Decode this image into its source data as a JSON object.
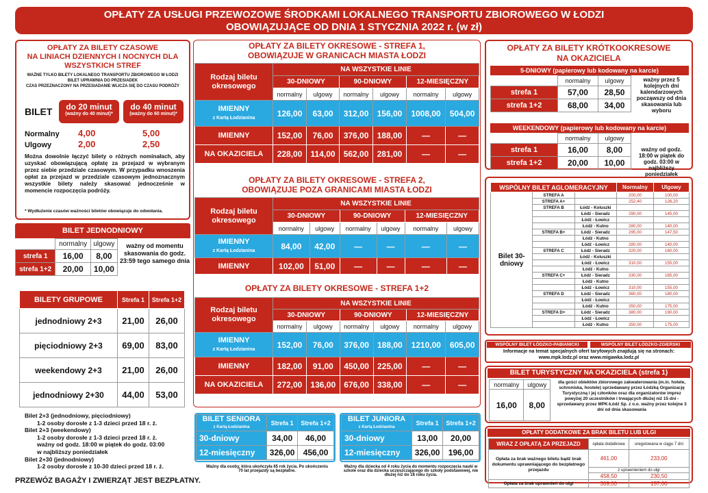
{
  "banner": {
    "line1": "OPŁATY ZA USŁUGI PRZEWOZOWE ŚRODKAMI LOKALNEGO TRANSPORTU ZBIOROWEGO W ŁODZI",
    "line2": "OBOWIĄZUJĄCE OD DNIA 1 STYCZNIA 2022 r. (w zł)"
  },
  "czasowe": {
    "title1": "OPŁATY ZA BILETY CZASOWE",
    "title2": "NA LINIACH  DZIENNYCH I NOCNYCH DLA",
    "title3": "WSZYSTKICH STREF",
    "note1": "WAŻNE TYLKO BILETY LOKALNEGO TRANSPORTU ZBIOROWEGO W ŁODZI",
    "note2": "BILET UPRAWNIA DO PRZESIADEK",
    "note3": "CZAS PRZEZNACZONY NA PRZESIADANIE WLICZA SIĘ DO CZASU PODRÓŻY",
    "bilet": "BILET",
    "t20": "do 20 minut",
    "t20sub": "(ważny do 40 minut)*",
    "t40": "do 40 minut",
    "t40sub": "(ważny do 60 minut)*",
    "normalny": "Normalny",
    "ulgowy": "Ulgowy",
    "n20": "4,00",
    "n40": "5,00",
    "u20": "2,00",
    "u40": "2,50",
    "body": "Można dowolnie łączyć bilety o różnych nominałach, aby uzyskać obowiązującą opłatę za przejazd w wybranym przez siebie przedziale czasowym. W przypadku wnoszenia opłat za przejazd w przedziale czasowym jednoznacznym wszystkie bilety należy skasować jednocześnie w momencie rozpoczęcia podróży.",
    "foot": "* Wydłużenie czasów ważności biletów obowiązuje do odwołania."
  },
  "jednorazowy": {
    "title": "BILET JEDNODNIOWY",
    "normalny": "normalny",
    "ulgowy": "ulgowy",
    "rows": [
      {
        "s": "strefa 1",
        "n": "16,00",
        "u": "8,00"
      },
      {
        "s": "strefa 1+2",
        "n": "20,00",
        "u": "10,00"
      }
    ],
    "note": "ważny od momentu skasowania do godz. 23:59 tego samego dnia"
  },
  "grupowe": {
    "title": "BILETY GRUPOWE",
    "c1": "Strefa 1",
    "c2": "Strefa 1+2",
    "rows": [
      {
        "n": "jednodniowy 2+3",
        "a": "21,00",
        "b": "26,00"
      },
      {
        "n": "pięciodniowy 2+3",
        "a": "69,00",
        "b": "83,00"
      },
      {
        "n": "weekendowy 2+3",
        "a": "21,00",
        "b": "26,00"
      },
      {
        "n": "jednodniowy 2+30",
        "a": "44,00",
        "b": "53,00"
      }
    ],
    "notes": [
      "Bilet 2+3 (jednodniowy, pięciodniowy)",
      "1-2 osoby dorosłe z 1-3 dzieci przed 18 r. ż.",
      "Bilet 2+3 (weekendowy)",
      "1-2 osoby dorosłe z 1-3 dzieci przed 18 r. ż.",
      "ważny od godz. 18:00 w piątek do godz. 03:00",
      "w najbliższy poniedziałek",
      "Bilet 2+30 (jednodniowy)",
      "1-2 osoby dorosłe z 10-30 dzieci przed 18 r. ż."
    ]
  },
  "bagaz": "PRZEWÓZ BAGAŻY I ZWIERZĄT JEST BEZPŁATNY.",
  "s1": {
    "title1": "OPŁATY ZA BILETY OKRESOWE - STREFA 1,",
    "title2": "OBOWIĄZUJE W GRANICACH MIASTA ŁODZI",
    "rodzaj": "Rodzaj biletu okresowego",
    "wszystkie": "NA WSZYSTKIE LINIE",
    "d30": "30-DNIOWY",
    "d90": "90-DNIOWY",
    "m12": "12-MIESIĘCZNY",
    "normalny": "normalny",
    "ulgowy": "ulgowy",
    "rows": [
      {
        "n": "IMIENNY",
        "sub": "z Kartą Łodzianina",
        "v": [
          "126,00",
          "63,00",
          "312,00",
          "156,00",
          "1008,00",
          "504,00"
        ]
      },
      {
        "n": "IMIENNY",
        "sub": "",
        "v": [
          "152,00",
          "76,00",
          "376,00",
          "188,00",
          "—",
          "—"
        ]
      },
      {
        "n": "NA OKAZICIELA",
        "sub": "",
        "v": [
          "228,00",
          "114,00",
          "562,00",
          "281,00",
          "—",
          "—"
        ]
      }
    ]
  },
  "s2": {
    "title1": "OPŁATY ZA BILETY OKRESOWE - STREFA 2,",
    "title2": "OBOWIĄZUJE POZA GRANICAMI MIASTA ŁODZI",
    "rows": [
      {
        "n": "IMIENNY",
        "sub": "z Kartą Łodzianina",
        "v": [
          "84,00",
          "42,00",
          "—",
          "—",
          "—",
          "—"
        ]
      },
      {
        "n": "IMIENNY",
        "sub": "",
        "v": [
          "102,00",
          "51,00",
          "—",
          "—",
          "—",
          "—"
        ]
      }
    ]
  },
  "s12": {
    "title": "OPŁATY ZA BILETY OKRESOWE - STREFA 1+2",
    "rows": [
      {
        "n": "IMIENNY",
        "sub": "z Kartą Łodzianina",
        "v": [
          "152,00",
          "76,00",
          "376,00",
          "188,00",
          "1210,00",
          "605,00"
        ]
      },
      {
        "n": "IMIENNY",
        "sub": "",
        "v": [
          "182,00",
          "91,00",
          "450,00",
          "225,00",
          "—",
          "—"
        ]
      },
      {
        "n": "NA OKAZICIELA",
        "sub": "",
        "v": [
          "272,00",
          "136,00",
          "676,00",
          "338,00",
          "—",
          "—"
        ]
      }
    ]
  },
  "senior": {
    "title": "BILET SENIORA",
    "sub": "z Kartą Łodzianina",
    "c1": "Strefa 1",
    "c2": "Strefa 1+2",
    "rows": [
      {
        "n": "30-dniowy",
        "a": "34,00",
        "b": "46,00"
      },
      {
        "n": "12-miesięczny",
        "a": "326,00",
        "b": "456,00"
      }
    ],
    "note": "Ważny dla osoby, która ukończyła 65 rok życia. Po ukończeniu 70 lat przejazdy są bezpłatne."
  },
  "junior": {
    "title": "BILET JUNIORA",
    "sub": "z Kartą Łodzianina",
    "c1": "Strefa 1",
    "c2": "Strefa 1+2",
    "rows": [
      {
        "n": "30-dniowy",
        "a": "13,00",
        "b": "20,00"
      },
      {
        "n": "12-miesięczny",
        "a": "326,00",
        "b": "196,00"
      }
    ],
    "note": "Ważny dla dziecka od 4 roku życia do momentu rozpoczęcia nauki w szkole oraz dla dziecka uczęszczającego do szkoły podstawowej, nie dłużej niż do 18 roku życia."
  },
  "krotko": {
    "title1": "OPŁATY ZA BILETY KRÓTKOOKRESOWE",
    "title2": "NA OKAZICIELA",
    "d5": "5-DNIOWY (papierowy lub kodowany na karcie)",
    "normalny": "normalny",
    "ulgowy": "ulgowy",
    "rows5": [
      {
        "s": "strefa 1",
        "n": "57,00",
        "u": "28,50"
      },
      {
        "s": "strefa 1+2",
        "n": "68,00",
        "u": "34,00"
      }
    ],
    "note5": "ważny przez 5 kolejnych dni kalendarzowych począwszy od dnia skasowania lub wyboru",
    "wk": "WEEKENDOWY (papierowy lub kodowany na karcie)",
    "rowsw": [
      {
        "s": "strefa 1",
        "n": "16,00",
        "u": "8,00"
      },
      {
        "s": "strefa 1+2",
        "n": "20,00",
        "u": "10,00"
      }
    ],
    "notew": "ważny od godz. 18:00 w piątek do godz. 03:00 w najbliższy poniedziałek"
  },
  "aglo": {
    "title": "WSPÓLNY BILET AGLOMERACYJNY",
    "normalny": "Normalny",
    "ulgowy": "Ulgowy",
    "bilet": "Bilet 30-dniowy",
    "rows": [
      {
        "g": "STREFA  A",
        "s": "",
        "n": "200,00",
        "u": "100,00"
      },
      {
        "g": "STREFA  A+",
        "s": "",
        "n": "252,40",
        "u": "126,20"
      },
      {
        "g": "STREFA  B",
        "s": "Łódź - Koluszki",
        "n": "",
        "u": ""
      },
      {
        "g": "",
        "s": "Łódź - Sieradz",
        "n": "290,00",
        "u": "145,00"
      },
      {
        "g": "",
        "s": "Łódź - Łowicz",
        "n": "",
        "u": ""
      },
      {
        "g": "",
        "s": "Łódź - Kutno",
        "n": "280,00",
        "u": "140,00"
      },
      {
        "g": "STREFA  B+",
        "s": "Łódź - Sieradz",
        "n": "295,00",
        "u": "147,50"
      },
      {
        "g": "",
        "s": "Łódź - Kutno",
        "n": "",
        "u": ""
      },
      {
        "g": "",
        "s": "Łódź - Łowicz",
        "n": "280,00",
        "u": "140,00"
      },
      {
        "g": "STREFA  C",
        "s": "Łódź - Sieradz",
        "n": "320,00",
        "u": "160,00"
      },
      {
        "g": "",
        "s": "Łódź - Koluszki",
        "n": "",
        "u": ""
      },
      {
        "g": "",
        "s": "Łódź - Łowicz",
        "n": "310,00",
        "u": "155,00"
      },
      {
        "g": "",
        "s": "Łódź - Kutno",
        "n": "",
        "u": ""
      },
      {
        "g": "STREFA  C+",
        "s": "Łódź - Sieradz",
        "n": "330,00",
        "u": "165,00"
      },
      {
        "g": "",
        "s": "Łódź - Kutno",
        "n": "",
        "u": ""
      },
      {
        "g": "",
        "s": "Łódź - Łowicz",
        "n": "310,00",
        "u": "155,00"
      },
      {
        "g": "STREFA  D",
        "s": "Łódź - Sieradz",
        "n": "360,00",
        "u": "180,00"
      },
      {
        "g": "",
        "s": "Łódź - Łowicz",
        "n": "",
        "u": ""
      },
      {
        "g": "",
        "s": "Łódź - Kutno",
        "n": "350,00",
        "u": "175,00"
      },
      {
        "g": "STREFA  D+",
        "s": "Łódź - Sieradz",
        "n": "380,00",
        "u": "190,00"
      },
      {
        "g": "",
        "s": "Łódź - Łowicz",
        "n": "",
        "u": ""
      },
      {
        "g": "",
        "s": "Łódź - Kutno",
        "n": "350,00",
        "u": "175,00"
      }
    ]
  },
  "wspolne": {
    "a": "WSPÓLNY BILET ŁÓDZKO-PABIANICKI",
    "b": "WSPÓLNY BILET ŁÓDZKO-ZGIERSKI",
    "info1": "Informacje na temat specjalnych ofert taryfowych znajdują się na stronach:",
    "info2": "www.mpk.lodz.pl oraz www.migawka.lodz.pl"
  },
  "turyst": {
    "title": "BILET TURYSTYCZNY NA OKAZICIELA (strefa 1)",
    "normalny": "normalny",
    "ulgowy": "ulgowy",
    "n": "16,00",
    "u": "8,00",
    "note": "dla gości obiektów zbiorowego zakwaterowania (m.in. hotele, schroniska, hostele) sprzedawany przez Łódzką Organizację Turystyczną i jej członków oraz dla organizatorów imprez powyżej 20 uczestników i trwających dłużej niż 15 dni - sprzedawany przez MPK-Łódź Sp. z o.o. ważny przez kolejne 3 dni od dnia skasowania"
  },
  "dodatkowe": {
    "title": "OPŁATY DODATKOWE ZA BRAK BILETU LUB ULGI",
    "h1": "WRAZ Z OPŁATĄ ZA PRZEJAZD",
    "h2": "opłata dodatkowa",
    "h3": "uregulowana w ciągu 7 dni",
    "r1": "Opłata za brak ważnego biletu bądź brak dokumentu uprawniającego do bezpłatnego przejazdu",
    "r1a": "461,00",
    "r1b": "233,00",
    "r1mid": "z uprawnieniem do ulgi",
    "r1c": "458,50",
    "r1d": "230,50",
    "r2": "Opłata za brak uprawnień do ulgi",
    "r2a": "309,00",
    "r2b": "157,00"
  }
}
